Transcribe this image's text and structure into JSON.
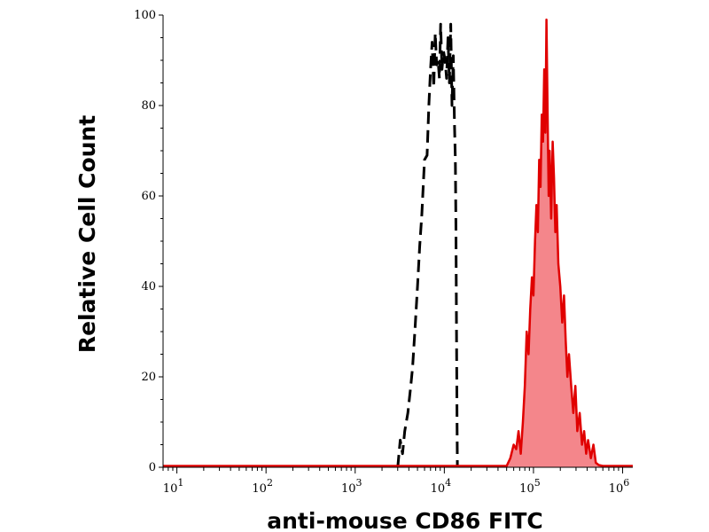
{
  "chart_data": {
    "type": "area",
    "title": "",
    "xlabel": "anti-mouse CD86 FITC",
    "ylabel": "Relative Cell Count",
    "xscale": "log",
    "xlim": [
      7,
      1300000
    ],
    "ylim": [
      0,
      100
    ],
    "grid": false,
    "legend": "none",
    "x_ticks": [
      {
        "base": "10",
        "exp": "1",
        "value": 10
      },
      {
        "base": "10",
        "exp": "2",
        "value": 100
      },
      {
        "base": "10",
        "exp": "3",
        "value": 1000
      },
      {
        "base": "10",
        "exp": "4",
        "value": 10000
      },
      {
        "base": "10",
        "exp": "5",
        "value": 100000
      },
      {
        "base": "10",
        "exp": "6",
        "value": 1000000
      }
    ],
    "y_ticks": [
      "0",
      "20",
      "40",
      "60",
      "80",
      "100"
    ],
    "series": [
      {
        "style": "dashed",
        "color": "#000000",
        "fill": "none",
        "points": [
          [
            3000,
            0
          ],
          [
            3200,
            6
          ],
          [
            3400,
            3
          ],
          [
            3600,
            8
          ],
          [
            3900,
            12
          ],
          [
            4200,
            18
          ],
          [
            4400,
            22
          ],
          [
            4700,
            31
          ],
          [
            5000,
            40
          ],
          [
            5300,
            49
          ],
          [
            5600,
            56
          ],
          [
            6000,
            68
          ],
          [
            6400,
            69
          ],
          [
            6700,
            80
          ],
          [
            7000,
            88
          ],
          [
            7300,
            94
          ],
          [
            7600,
            84
          ],
          [
            7900,
            96
          ],
          [
            8200,
            89
          ],
          [
            8500,
            90
          ],
          [
            8800,
            86
          ],
          [
            9100,
            98
          ],
          [
            9400,
            88
          ],
          [
            9800,
            92
          ],
          [
            10200,
            90
          ],
          [
            10600,
            86
          ],
          [
            11000,
            95
          ],
          [
            11400,
            85
          ],
          [
            11800,
            98
          ],
          [
            12200,
            80
          ],
          [
            12600,
            91
          ],
          [
            13000,
            76
          ],
          [
            13300,
            68
          ],
          [
            13500,
            52
          ],
          [
            13700,
            30
          ],
          [
            13900,
            10
          ],
          [
            14000,
            0
          ]
        ]
      },
      {
        "style": "solid",
        "color": "#e00000",
        "fill": "#f4868b",
        "points": [
          [
            7,
            0.3
          ],
          [
            100,
            0.3
          ],
          [
            1000,
            0.3
          ],
          [
            10000,
            0.3
          ],
          [
            50000,
            0.3
          ],
          [
            55000,
            2
          ],
          [
            60000,
            5
          ],
          [
            64000,
            4
          ],
          [
            68000,
            8
          ],
          [
            72000,
            3
          ],
          [
            76000,
            10
          ],
          [
            80000,
            18
          ],
          [
            84000,
            30
          ],
          [
            88000,
            25
          ],
          [
            92000,
            35
          ],
          [
            96000,
            42
          ],
          [
            100000,
            38
          ],
          [
            104000,
            50
          ],
          [
            108000,
            58
          ],
          [
            112000,
            52
          ],
          [
            116000,
            68
          ],
          [
            120000,
            62
          ],
          [
            124000,
            78
          ],
          [
            128000,
            72
          ],
          [
            132000,
            88
          ],
          [
            136000,
            74
          ],
          [
            140000,
            99
          ],
          [
            144000,
            78
          ],
          [
            148000,
            60
          ],
          [
            152000,
            70
          ],
          [
            158000,
            55
          ],
          [
            164000,
            72
          ],
          [
            170000,
            64
          ],
          [
            176000,
            52
          ],
          [
            182000,
            58
          ],
          [
            190000,
            45
          ],
          [
            200000,
            40
          ],
          [
            210000,
            32
          ],
          [
            220000,
            38
          ],
          [
            230000,
            28
          ],
          [
            240000,
            20
          ],
          [
            250000,
            25
          ],
          [
            265000,
            18
          ],
          [
            280000,
            12
          ],
          [
            295000,
            18
          ],
          [
            310000,
            8
          ],
          [
            330000,
            12
          ],
          [
            350000,
            5
          ],
          [
            370000,
            8
          ],
          [
            390000,
            3
          ],
          [
            410000,
            6
          ],
          [
            440000,
            2
          ],
          [
            470000,
            5
          ],
          [
            500000,
            1
          ],
          [
            540000,
            0.5
          ],
          [
            600000,
            0.3
          ],
          [
            1300000,
            0.3
          ]
        ]
      }
    ]
  }
}
